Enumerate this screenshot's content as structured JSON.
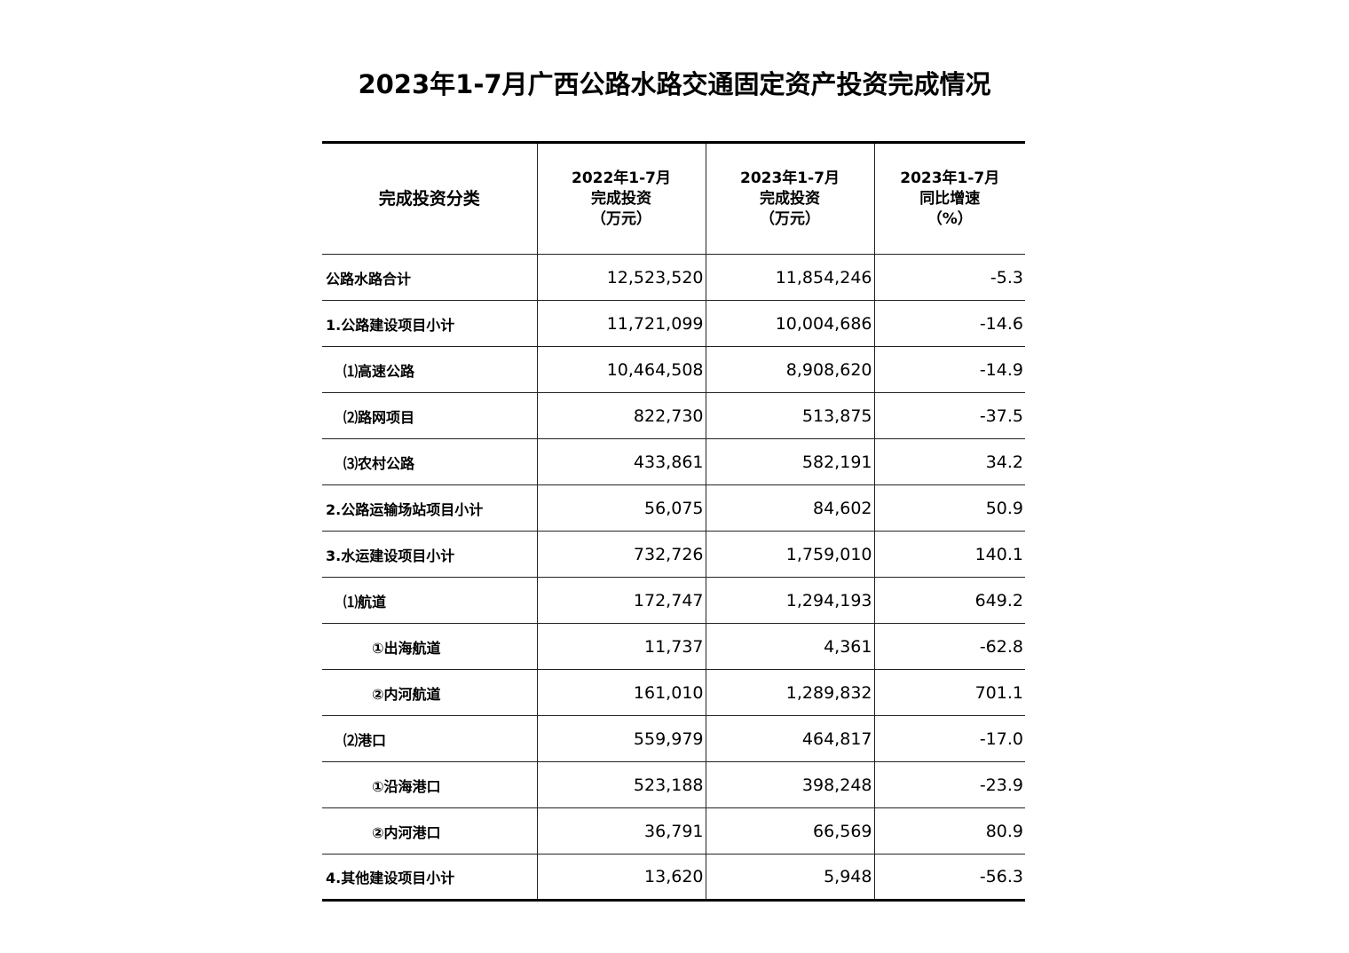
{
  "title": "2023年1-7月广西公路水路交通固定资产投资完成情况",
  "headers": [
    {
      "lines": [
        "完成投资分类"
      ]
    },
    {
      "lines": [
        "2022年1-7月",
        "完成投资",
        "（万元）"
      ]
    },
    {
      "lines": [
        "2023年1-7月",
        "完成投资",
        "（万元）"
      ]
    },
    {
      "lines": [
        "2023年1-7月",
        "同比增速",
        "（%）"
      ]
    }
  ],
  "rows": [
    {
      "label": "公路水路合计",
      "level": 0,
      "v2022": "12,523,520",
      "v2023": "11,854,246",
      "growth": "-5.3"
    },
    {
      "label": "1.公路建设项目小计",
      "level": 0,
      "v2022": "11,721,099",
      "v2023": "10,004,686",
      "growth": "-14.6"
    },
    {
      "label": "⑴高速公路",
      "level": 1,
      "v2022": "10,464,508",
      "v2023": "8,908,620",
      "growth": "-14.9"
    },
    {
      "label": "⑵路网项目",
      "level": 1,
      "v2022": "822,730",
      "v2023": "513,875",
      "growth": "-37.5"
    },
    {
      "label": "⑶农村公路",
      "level": 1,
      "v2022": "433,861",
      "v2023": "582,191",
      "growth": "34.2"
    },
    {
      "label": "2.公路运输场站项目小计",
      "level": 0,
      "v2022": "56,075",
      "v2023": "84,602",
      "growth": "50.9"
    },
    {
      "label": "3.水运建设项目小计",
      "level": 0,
      "v2022": "732,726",
      "v2023": "1,759,010",
      "growth": "140.1"
    },
    {
      "label": "⑴航道",
      "level": 1,
      "v2022": "172,747",
      "v2023": "1,294,193",
      "growth": "649.2"
    },
    {
      "label": "①出海航道",
      "level": 2,
      "v2022": "11,737",
      "v2023": "4,361",
      "growth": "-62.8"
    },
    {
      "label": "②内河航道",
      "level": 2,
      "v2022": "161,010",
      "v2023": "1,289,832",
      "growth": "701.1"
    },
    {
      "label": "⑵港口",
      "level": 1,
      "v2022": "559,979",
      "v2023": "464,817",
      "growth": "-17.0"
    },
    {
      "label": "①沿海港口",
      "level": 2,
      "v2022": "523,188",
      "v2023": "398,248",
      "growth": "-23.9"
    },
    {
      "label": "②内河港口",
      "level": 2,
      "v2022": "36,791",
      "v2023": "66,569",
      "growth": "80.9"
    },
    {
      "label": "4.其他建设项目小计",
      "level": 0,
      "v2022": "13,620",
      "v2023": "5,948",
      "growth": "-56.3"
    }
  ]
}
